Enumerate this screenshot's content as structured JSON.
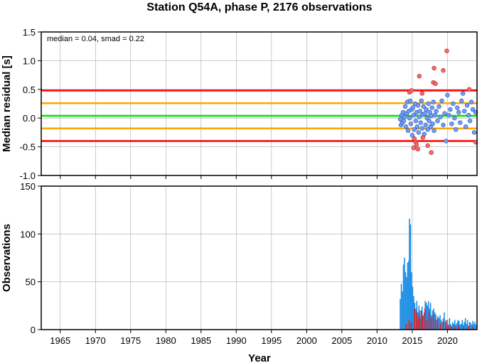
{
  "title": "Station Q54A, phase P, 2176 observations",
  "chart_data": [
    {
      "type": "scatter",
      "ylabel": "Median residual [s]",
      "xlim": [
        1962.3,
        2024.2
      ],
      "ylim": [
        -1.0,
        1.5
      ],
      "yticks": [
        -1.0,
        -0.5,
        0.0,
        0.5,
        1.0,
        1.5
      ],
      "ytick_labels": [
        "-1.0",
        "-0.5",
        "0.0",
        "0.5",
        "1.0",
        "1.5"
      ],
      "xticks": [
        1965,
        1970,
        1975,
        1980,
        1985,
        1990,
        1995,
        2000,
        2005,
        2010,
        2015,
        2020
      ],
      "annotation": "median = 0.04, smad = 0.22",
      "colors": {
        "inlier": "#6f9ff5",
        "outlier": "#f56a6a",
        "median": "#00e600",
        "band1": "#ffa500",
        "band2": "#ff0000"
      },
      "reference_lines": [
        {
          "kind": "band2",
          "value": 0.48,
          "color": "#ff0000"
        },
        {
          "kind": "band1",
          "value": 0.26,
          "color": "#ffa500"
        },
        {
          "kind": "median",
          "value": 0.04,
          "color": "#00e600"
        },
        {
          "kind": "band1",
          "value": -0.18,
          "color": "#ffa500"
        },
        {
          "kind": "band2",
          "value": -0.4,
          "color": "#ff0000"
        }
      ],
      "points_inlier": [
        [
          2013.3,
          -0.02
        ],
        [
          2013.4,
          -0.12
        ],
        [
          2013.5,
          0.05
        ],
        [
          2013.6,
          -0.08
        ],
        [
          2013.7,
          0.1
        ],
        [
          2013.8,
          -0.05
        ],
        [
          2013.9,
          0.02
        ],
        [
          2014.0,
          0.2
        ],
        [
          2014.1,
          -0.15
        ],
        [
          2014.2,
          0.08
        ],
        [
          2014.3,
          0.28
        ],
        [
          2014.4,
          -0.22
        ],
        [
          2014.5,
          0.12
        ],
        [
          2014.6,
          0.0
        ],
        [
          2014.7,
          0.3
        ],
        [
          2014.8,
          -0.1
        ],
        [
          2014.9,
          0.15
        ],
        [
          2015.0,
          -0.3
        ],
        [
          2015.1,
          0.18
        ],
        [
          2015.2,
          0.05
        ],
        [
          2015.3,
          -0.2
        ],
        [
          2015.4,
          0.25
        ],
        [
          2015.5,
          -0.05
        ],
        [
          2015.6,
          0.1
        ],
        [
          2015.7,
          -0.15
        ],
        [
          2015.8,
          0.22
        ],
        [
          2015.9,
          -0.25
        ],
        [
          2016.0,
          0.02
        ],
        [
          2016.1,
          0.12
        ],
        [
          2016.2,
          -0.08
        ],
        [
          2016.3,
          0.3
        ],
        [
          2016.4,
          -0.18
        ],
        [
          2016.5,
          0.06
        ],
        [
          2016.6,
          0.2
        ],
        [
          2016.7,
          -0.28
        ],
        [
          2016.8,
          0.08
        ],
        [
          2016.9,
          -0.12
        ],
        [
          2017.0,
          0.15
        ],
        [
          2017.1,
          0.0
        ],
        [
          2017.2,
          -0.2
        ],
        [
          2017.3,
          0.25
        ],
        [
          2017.4,
          -0.05
        ],
        [
          2017.5,
          0.1
        ],
        [
          2017.6,
          -0.15
        ],
        [
          2017.7,
          0.04
        ],
        [
          2017.8,
          0.18
        ],
        [
          2017.9,
          -0.1
        ],
        [
          2018.0,
          0.28
        ],
        [
          2018.1,
          -0.22
        ],
        [
          2018.2,
          0.05
        ],
        [
          2018.4,
          0.12
        ],
        [
          2018.6,
          -0.05
        ],
        [
          2018.8,
          0.2
        ],
        [
          2019.0,
          0.02
        ],
        [
          2019.2,
          0.3
        ],
        [
          2019.4,
          -0.12
        ],
        [
          2019.6,
          0.08
        ],
        [
          2019.8,
          -0.4
        ],
        [
          2020.0,
          0.4
        ],
        [
          2020.2,
          0.05
        ],
        [
          2020.4,
          0.15
        ],
        [
          2020.6,
          -0.1
        ],
        [
          2020.8,
          0.25
        ],
        [
          2021.0,
          0.0
        ],
        [
          2021.2,
          -0.2
        ],
        [
          2021.4,
          0.18
        ],
        [
          2021.6,
          0.1
        ],
        [
          2021.8,
          -0.08
        ],
        [
          2022.0,
          0.3
        ],
        [
          2022.2,
          0.43
        ],
        [
          2022.4,
          0.12
        ],
        [
          2022.6,
          -0.15
        ],
        [
          2022.8,
          0.22
        ],
        [
          2023.0,
          0.05
        ],
        [
          2023.2,
          -0.05
        ],
        [
          2023.4,
          0.28
        ],
        [
          2023.6,
          0.15
        ],
        [
          2023.8,
          -0.25
        ],
        [
          2024.0,
          0.1
        ]
      ],
      "points_outlier": [
        [
          2014.6,
          0.45
        ],
        [
          2014.9,
          0.48
        ],
        [
          2015.3,
          -0.36
        ],
        [
          2015.5,
          -0.42
        ],
        [
          2015.6,
          -0.46
        ],
        [
          2015.8,
          -0.54
        ],
        [
          2016.0,
          0.73
        ],
        [
          2016.4,
          0.43
        ],
        [
          2016.5,
          -0.34
        ],
        [
          2017.2,
          -0.48
        ],
        [
          2017.7,
          -0.6
        ],
        [
          2018.0,
          0.62
        ],
        [
          2018.1,
          0.87
        ],
        [
          2018.3,
          0.6
        ],
        [
          2019.4,
          0.83
        ],
        [
          2019.9,
          1.17
        ],
        [
          2023.1,
          0.5
        ],
        [
          2024.0,
          -0.42
        ],
        [
          2015.2,
          -0.52
        ]
      ]
    },
    {
      "type": "bar",
      "ylabel": "Observations",
      "xlabel": "Year",
      "xlim": [
        1962.3,
        2024.2
      ],
      "ylim": [
        0,
        150
      ],
      "yticks": [
        0,
        50,
        100,
        150
      ],
      "ytick_labels": [
        "0",
        "50",
        "100",
        "150"
      ],
      "xticks": [
        1965,
        1970,
        1975,
        1980,
        1985,
        1990,
        1995,
        2000,
        2005,
        2010,
        2015,
        2020
      ],
      "xtick_labels": [
        "1965",
        "1970",
        "1975",
        "1980",
        "1985",
        "1990",
        "1995",
        "2000",
        "2005",
        "2010",
        "2015",
        "2020"
      ],
      "colors": {
        "total": "#1e8fe6",
        "outliers": "#e61e1e"
      },
      "series": [
        {
          "key": "total",
          "x": [
            2013.3,
            2013.45,
            2013.6,
            2013.75,
            2013.9,
            2014.05,
            2014.2,
            2014.35,
            2014.5,
            2014.6,
            2014.75,
            2014.9,
            2015.05,
            2015.2,
            2015.35,
            2015.5,
            2015.65,
            2015.8,
            2015.95,
            2016.1,
            2016.25,
            2016.4,
            2016.55,
            2016.7,
            2016.85,
            2017.0,
            2017.15,
            2017.3,
            2017.45,
            2017.6,
            2017.75,
            2017.9,
            2018.05,
            2018.2,
            2018.35,
            2018.5,
            2018.65,
            2018.8,
            2018.95,
            2019.1,
            2019.25,
            2019.4,
            2019.55,
            2019.7,
            2019.85,
            2020.0,
            2020.15,
            2020.3,
            2020.45,
            2020.6,
            2020.75,
            2020.9,
            2021.05,
            2021.2,
            2021.35,
            2021.5,
            2021.65,
            2021.8,
            2021.95,
            2022.1,
            2022.25,
            2022.4,
            2022.55,
            2022.7,
            2022.85,
            2023.0,
            2023.15,
            2023.3,
            2023.45,
            2023.6,
            2023.75,
            2023.9,
            2024.05
          ],
          "values": [
            32,
            48,
            40,
            68,
            75,
            60,
            55,
            70,
            72,
            116,
            110,
            60,
            45,
            35,
            28,
            22,
            30,
            18,
            25,
            20,
            12,
            24,
            15,
            18,
            30,
            28,
            25,
            30,
            22,
            28,
            15,
            20,
            22,
            18,
            16,
            10,
            14,
            12,
            15,
            10,
            8,
            12,
            18,
            8,
            6,
            10,
            5,
            12,
            6,
            4,
            8,
            6,
            10,
            5,
            7,
            10,
            9,
            5,
            6,
            10,
            5,
            8,
            12,
            6,
            10,
            4,
            8,
            7,
            5,
            9,
            6,
            8,
            5
          ]
        },
        {
          "key": "outliers",
          "x": [
            2014.15,
            2014.55,
            2014.85,
            2015.3,
            2015.6,
            2015.85,
            2016.05,
            2016.3,
            2016.5,
            2016.8,
            2017.1,
            2017.4,
            2017.7,
            2018.0,
            2018.3,
            2018.6,
            2019.0,
            2019.4,
            2019.8,
            2020.1,
            2020.5,
            2021.0,
            2021.6,
            2022.3,
            2023.0,
            2023.6
          ],
          "values": [
            6,
            10,
            8,
            22,
            18,
            12,
            15,
            20,
            14,
            22,
            10,
            18,
            12,
            16,
            10,
            12,
            6,
            8,
            10,
            5,
            4,
            3,
            4,
            3,
            4,
            3
          ]
        }
      ]
    }
  ]
}
